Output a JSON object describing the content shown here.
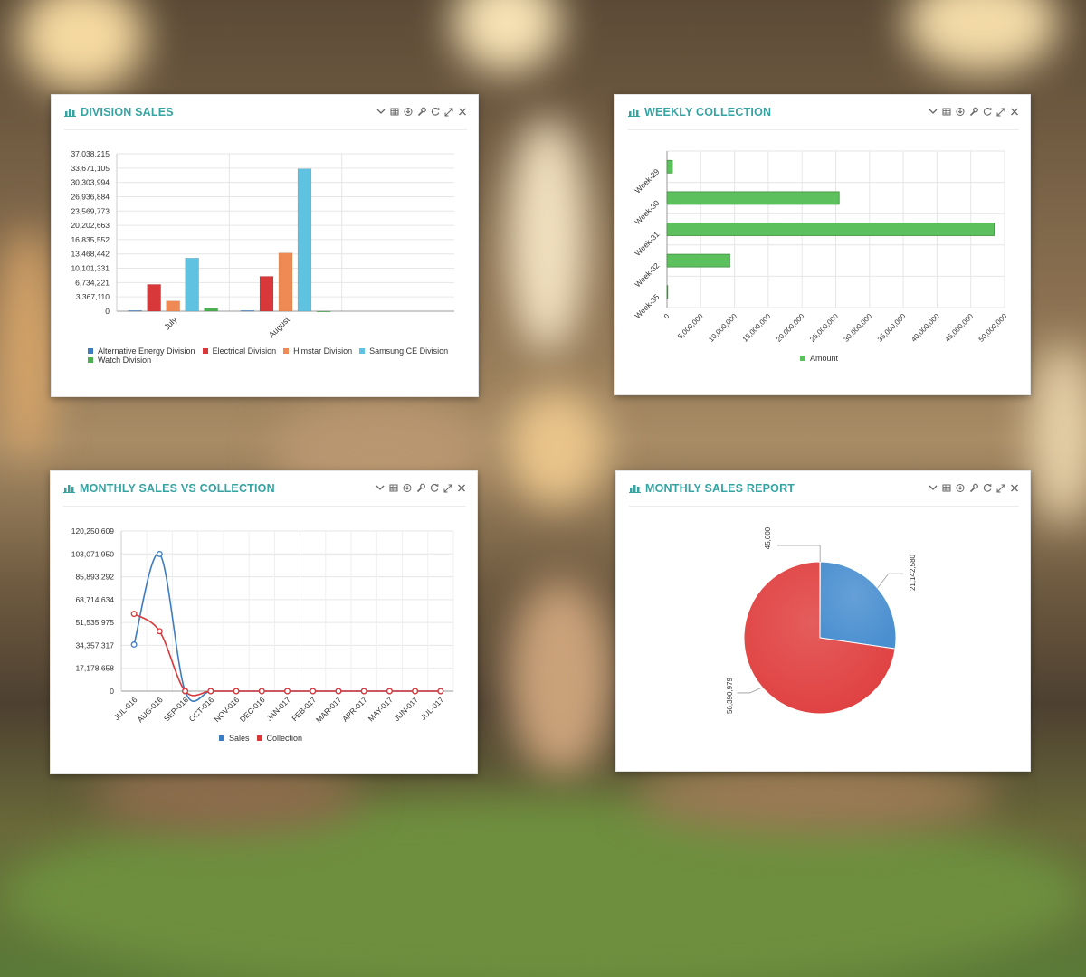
{
  "panels": {
    "division_sales": {
      "title": "DIVISION SALES"
    },
    "weekly_collection": {
      "title": "WEEKLY COLLECTION"
    },
    "monthly_sales_vs_collection": {
      "title": "MONTHLY SALES VS COLLECTION"
    },
    "monthly_sales_report": {
      "title": "MONTHLY SALES REPORT"
    }
  },
  "toolbar_icons": [
    "chevron-down-icon",
    "table-icon",
    "download-icon",
    "wrench-icon",
    "refresh-icon",
    "expand-icon",
    "close-icon"
  ],
  "chart_data": [
    {
      "type": "bar",
      "title": "DIVISION SALES",
      "categories": [
        "July",
        "August"
      ],
      "yticks": [
        "0",
        "3,367,110",
        "6,734,221",
        "10,101,331",
        "13,468,442",
        "16,835,552",
        "20,202,663",
        "23,569,773",
        "26,936,884",
        "30,303,994",
        "33,671,105",
        "37,038,215"
      ],
      "ylim": [
        0,
        37038215
      ],
      "grid": true,
      "legend_position": "bottom",
      "series": [
        {
          "name": "Alternative Energy Division",
          "color": "#3d7cc0",
          "values": [
            150000,
            150000
          ]
        },
        {
          "name": "Electrical Division",
          "color": "#d9383a",
          "values": [
            6300000,
            8200000
          ]
        },
        {
          "name": "Himstar Division",
          "color": "#f08a54",
          "values": [
            2400000,
            13700000
          ]
        },
        {
          "name": "Samsung CE Division",
          "color": "#5ec2e0",
          "values": [
            12500000,
            33500000
          ]
        },
        {
          "name": "Watch Division",
          "color": "#4caf50",
          "values": [
            700000,
            0
          ]
        }
      ]
    },
    {
      "type": "bar",
      "orientation": "horizontal",
      "title": "WEEKLY COLLECTION",
      "categories": [
        "Week-29",
        "Week-30",
        "Week-31",
        "Week-32",
        "Week-35"
      ],
      "xticks": [
        "0",
        "5,000,000",
        "10,000,000",
        "15,000,000",
        "20,000,000",
        "25,000,000",
        "30,000,000",
        "35,000,000",
        "40,000,000",
        "45,000,000",
        "50,000,000"
      ],
      "xlim": [
        0,
        50000000
      ],
      "grid": true,
      "legend_position": "bottom",
      "series": [
        {
          "name": "Amount",
          "color": "#5cc05c",
          "values": [
            800000,
            25500000,
            48500000,
            9300000,
            100000
          ]
        }
      ]
    },
    {
      "type": "line",
      "title": "MONTHLY SALES VS COLLECTION",
      "categories": [
        "JUL-016",
        "AUG-016",
        "SEP-016",
        "OCT-016",
        "NOV-016",
        "DEC-016",
        "JAN-017",
        "FEB-017",
        "MAR-017",
        "APR-017",
        "MAY-017",
        "JUN-017",
        "JUL-017"
      ],
      "yticks": [
        "0",
        "17,178,658",
        "34,357,317",
        "51,535,975",
        "68,714,634",
        "85,893,292",
        "103,071,950",
        "120,250,609"
      ],
      "ylim": [
        0,
        120250609
      ],
      "grid": true,
      "legend_position": "bottom",
      "series": [
        {
          "name": "Sales",
          "color": "#3d7cc0",
          "values": [
            35000000,
            103000000,
            0,
            0,
            0,
            0,
            0,
            0,
            0,
            0,
            0,
            0,
            0
          ]
        },
        {
          "name": "Collection",
          "color": "#d9383a",
          "values": [
            58000000,
            45000000,
            0,
            0,
            0,
            0,
            0,
            0,
            0,
            0,
            0,
            0,
            0
          ]
        }
      ]
    },
    {
      "type": "pie",
      "title": "MONTHLY SALES REPORT",
      "slices": [
        {
          "label": "45,000",
          "value": 45000,
          "color": "#3d7cc0"
        },
        {
          "label": "21,142,580",
          "value": 21142580,
          "color": "#4a8fd0"
        },
        {
          "label": "56,390,979",
          "value": 56390979,
          "color": "#e04040"
        }
      ]
    }
  ]
}
